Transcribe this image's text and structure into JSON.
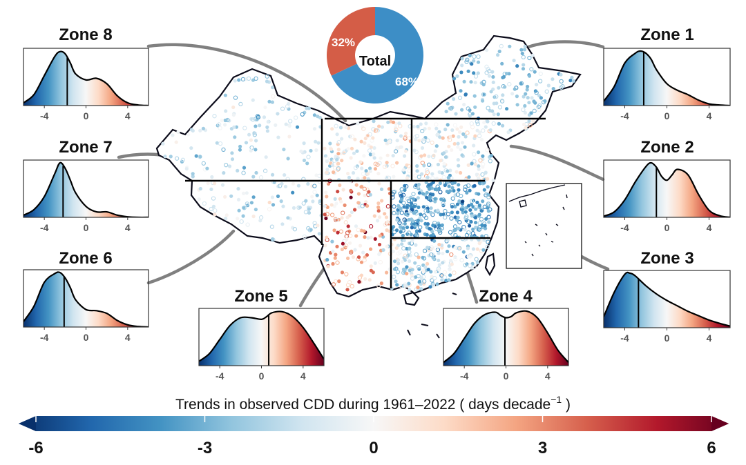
{
  "colors": {
    "stops": [
      "#08306b",
      "#2166ac",
      "#4393c3",
      "#92c5de",
      "#d1e5f0",
      "#f7f7f7",
      "#fddbc7",
      "#f4a582",
      "#d6604d",
      "#b2182b",
      "#67001f"
    ],
    "pie_negative": "#3d8ec6",
    "pie_positive": "#d45d47"
  },
  "pie": {
    "center_label": "Total",
    "negative_label": "68%",
    "positive_label": "32%",
    "negative_share": 0.68
  },
  "colorbar": {
    "title_main": "Trends in observed CDD during 1961–2022 ( days  decade",
    "title_sup": "−1",
    "title_end": " )",
    "ticks": [
      "-6",
      "-3",
      "0",
      "3",
      "6"
    ],
    "min": -6,
    "max": 6
  },
  "chart_data": [
    {
      "type": "area",
      "title": "Zone 8",
      "xlim": [
        -6,
        6
      ],
      "xticks": [
        "-4",
        "0",
        "4"
      ],
      "median": -1.8,
      "x": [
        -6,
        -5,
        -4,
        -3,
        -2.5,
        -2,
        -1.5,
        -1,
        0,
        1,
        2,
        3,
        4,
        5,
        6
      ],
      "y": [
        0.05,
        0.2,
        0.55,
        0.9,
        0.99,
        0.95,
        0.78,
        0.58,
        0.47,
        0.5,
        0.4,
        0.18,
        0.05,
        0.01,
        0.0
      ]
    },
    {
      "type": "area",
      "title": "Zone 7",
      "xlim": [
        -6,
        6
      ],
      "xticks": [
        "-4",
        "0",
        "4"
      ],
      "median": -2.2,
      "x": [
        -6,
        -5,
        -4,
        -3,
        -2.5,
        -2,
        -1.5,
        -1,
        0,
        1,
        2,
        3,
        4,
        5,
        6
      ],
      "y": [
        0.04,
        0.14,
        0.38,
        0.8,
        1.0,
        0.9,
        0.68,
        0.45,
        0.2,
        0.1,
        0.1,
        0.04,
        0.01,
        0.0,
        0.0
      ]
    },
    {
      "type": "area",
      "title": "Zone 6",
      "xlim": [
        -6,
        6
      ],
      "xticks": [
        "-4",
        "0",
        "4"
      ],
      "median": -2.1,
      "x": [
        -6,
        -5,
        -4,
        -3,
        -2.5,
        -2,
        -1.5,
        -1,
        0,
        1,
        2,
        3,
        4,
        5,
        6
      ],
      "y": [
        0.1,
        0.38,
        0.82,
        0.98,
        1.0,
        0.9,
        0.72,
        0.5,
        0.32,
        0.3,
        0.25,
        0.12,
        0.04,
        0.01,
        0.0
      ]
    },
    {
      "type": "area",
      "title": "Zone 5",
      "xlim": [
        -6,
        6
      ],
      "xticks": [
        "-4",
        "0",
        "4"
      ],
      "median": 0.7,
      "x": [
        -6,
        -5,
        -4,
        -3,
        -2,
        -1,
        0,
        0.5,
        1,
        2,
        3,
        4,
        5,
        6
      ],
      "y": [
        0.08,
        0.22,
        0.48,
        0.74,
        0.88,
        0.88,
        0.85,
        0.9,
        0.97,
        0.99,
        0.9,
        0.7,
        0.42,
        0.12
      ]
    },
    {
      "type": "area",
      "title": "Zone 4",
      "xlim": [
        -6,
        6
      ],
      "xticks": [
        "-4",
        "0",
        "4"
      ],
      "median": -0.1,
      "x": [
        -6,
        -5,
        -4,
        -3,
        -2,
        -1,
        -0.5,
        0,
        0.5,
        1,
        2,
        3,
        4,
        5,
        6
      ],
      "y": [
        0.06,
        0.22,
        0.5,
        0.78,
        0.94,
        0.98,
        0.92,
        0.88,
        0.9,
        0.97,
        1.0,
        0.88,
        0.6,
        0.28,
        0.06
      ]
    },
    {
      "type": "area",
      "title": "Zone 1",
      "xlim": [
        -6,
        6
      ],
      "xticks": [
        "-4",
        "0",
        "4"
      ],
      "median": -2.2,
      "x": [
        -6,
        -5,
        -4,
        -3,
        -2.5,
        -2,
        -1.5,
        -1,
        0,
        1,
        2,
        3,
        4,
        5,
        6
      ],
      "y": [
        0.08,
        0.35,
        0.78,
        0.96,
        1.0,
        0.96,
        0.85,
        0.66,
        0.4,
        0.28,
        0.2,
        0.1,
        0.03,
        0.01,
        0.0
      ]
    },
    {
      "type": "area",
      "title": "Zone 2",
      "xlim": [
        -6,
        6
      ],
      "xticks": [
        "-4",
        "0",
        "4"
      ],
      "median": -1.0,
      "x": [
        -6,
        -5,
        -4,
        -3,
        -2,
        -1.5,
        -1,
        -0.5,
        0,
        0.5,
        1,
        2,
        3,
        4,
        5,
        6
      ],
      "y": [
        0.02,
        0.1,
        0.32,
        0.65,
        0.93,
        1.0,
        0.92,
        0.75,
        0.68,
        0.78,
        0.88,
        0.78,
        0.42,
        0.13,
        0.03,
        0.0
      ]
    },
    {
      "type": "area",
      "title": "Zone 3",
      "xlim": [
        -6,
        6
      ],
      "xticks": [
        "-4",
        "0",
        "4"
      ],
      "median": -2.7,
      "x": [
        -6,
        -5,
        -4,
        -3.5,
        -3,
        -2,
        -1,
        0,
        1,
        2,
        3,
        4,
        5,
        6
      ],
      "y": [
        0.2,
        0.65,
        0.98,
        1.0,
        0.95,
        0.77,
        0.62,
        0.5,
        0.4,
        0.3,
        0.22,
        0.14,
        0.08,
        0.03
      ]
    }
  ]
}
